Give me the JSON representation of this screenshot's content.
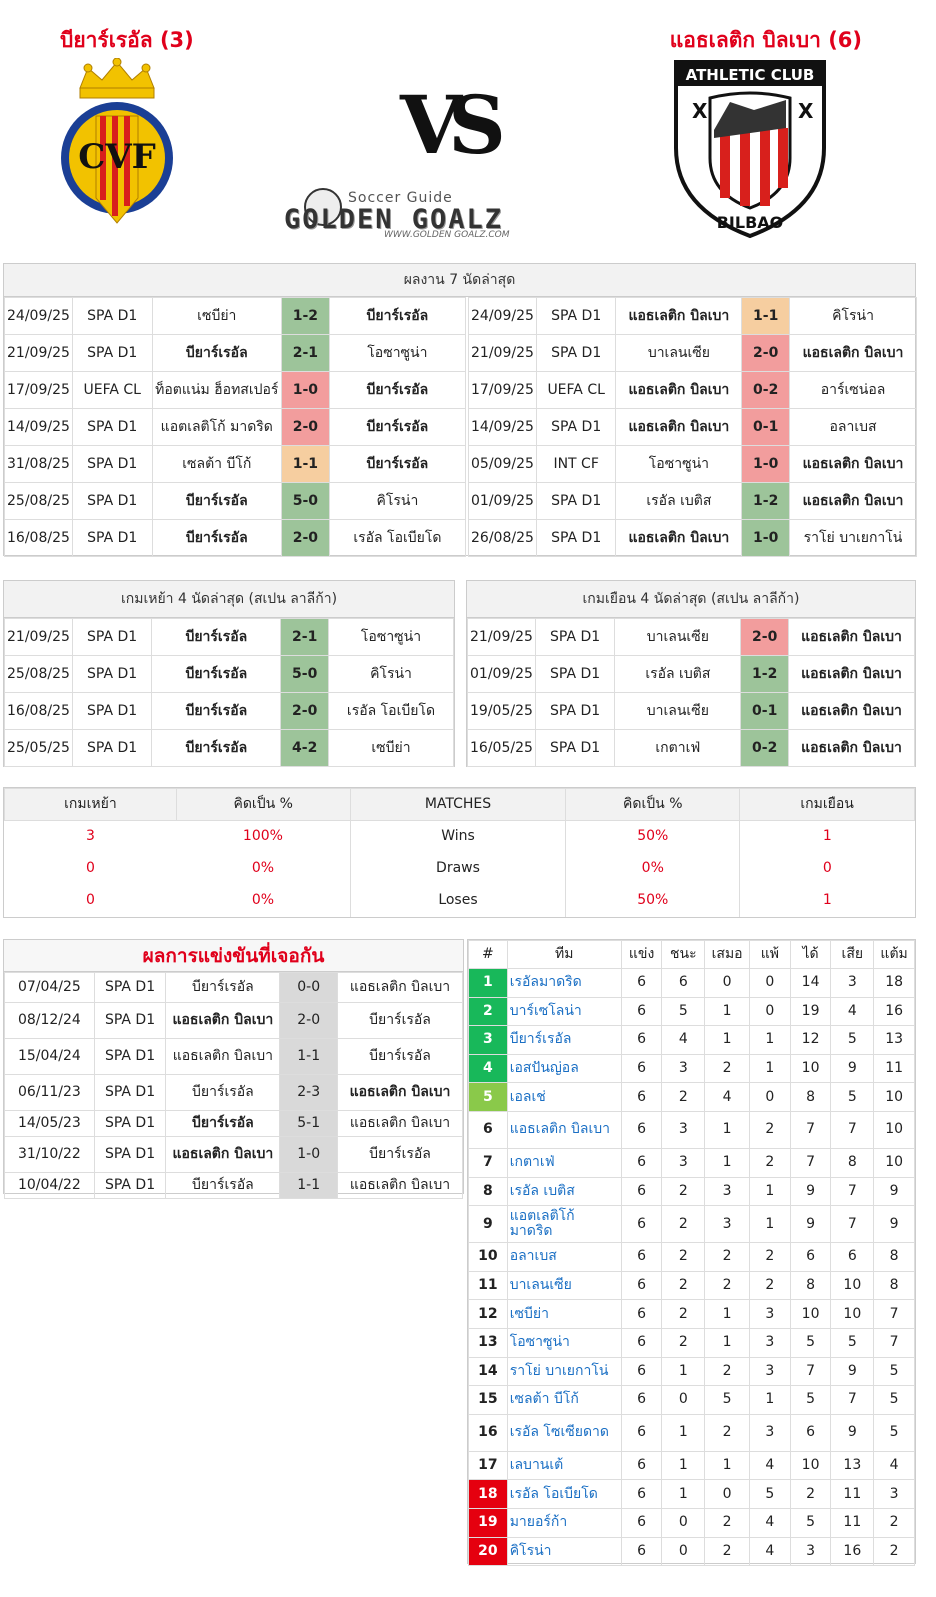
{
  "header": {
    "home_team": "บียาร์เรอัล (3)",
    "away_team": "แอธเลติก บิลเบา (6)",
    "vs": "VS",
    "brand_small": "Soccer Guide",
    "brand_big": "GOLDEN GOALZ",
    "brand_url": "WWW.GOLDEN GOALZ.COM",
    "home_crest_text": "CVF",
    "away_crest_top": "ATHLETIC CLUB",
    "away_crest_bottom": "BILBAO"
  },
  "last7": {
    "title": "ผลงาน 7 นัดล่าสุด",
    "home": [
      {
        "date": "24/09/25",
        "comp": "SPA D1",
        "home": "เซบีย่า",
        "score": "1-2",
        "away": "บียาร์เรอัล",
        "res": "win",
        "bold": "away"
      },
      {
        "date": "21/09/25",
        "comp": "SPA D1",
        "home": "บียาร์เรอัล",
        "score": "2-1",
        "away": "โอซาซูน่า",
        "res": "win",
        "bold": "home"
      },
      {
        "date": "17/09/25",
        "comp": "UEFA CL",
        "home": "ท็อตแน่ม ฮ็อทสเปอร์",
        "score": "1-0",
        "away": "บียาร์เรอัล",
        "res": "lose",
        "bold": "away"
      },
      {
        "date": "14/09/25",
        "comp": "SPA D1",
        "home": "แอตเลติโก้ มาดริด",
        "score": "2-0",
        "away": "บียาร์เรอัล",
        "res": "lose",
        "bold": "away"
      },
      {
        "date": "31/08/25",
        "comp": "SPA D1",
        "home": "เซลต้า บีโก้",
        "score": "1-1",
        "away": "บียาร์เรอัล",
        "res": "draw",
        "bold": "away"
      },
      {
        "date": "25/08/25",
        "comp": "SPA D1",
        "home": "บียาร์เรอัล",
        "score": "5-0",
        "away": "คิโรน่า",
        "res": "win",
        "bold": "home"
      },
      {
        "date": "16/08/25",
        "comp": "SPA D1",
        "home": "บียาร์เรอัล",
        "score": "2-0",
        "away": "เรอัล โอเบียโด",
        "res": "win",
        "bold": "home"
      }
    ],
    "away": [
      {
        "date": "24/09/25",
        "comp": "SPA D1",
        "home": "แอธเลติก บิลเบา",
        "score": "1-1",
        "away": "คิโรน่า",
        "res": "draw",
        "bold": "home"
      },
      {
        "date": "21/09/25",
        "comp": "SPA D1",
        "home": "บาเลนเซีย",
        "score": "2-0",
        "away": "แอธเลติก บิลเบา",
        "res": "lose",
        "bold": "away"
      },
      {
        "date": "17/09/25",
        "comp": "UEFA CL",
        "home": "แอธเลติก บิลเบา",
        "score": "0-2",
        "away": "อาร์เซน่อล",
        "res": "lose",
        "bold": "home"
      },
      {
        "date": "14/09/25",
        "comp": "SPA D1",
        "home": "แอธเลติก บิลเบา",
        "score": "0-1",
        "away": "อลาเบส",
        "res": "lose",
        "bold": "home"
      },
      {
        "date": "05/09/25",
        "comp": "INT CF",
        "home": "โอซาซูน่า",
        "score": "1-0",
        "away": "แอธเลติก บิลเบา",
        "res": "lose",
        "bold": "away"
      },
      {
        "date": "01/09/25",
        "comp": "SPA D1",
        "home": "เรอัล เบติส",
        "score": "1-2",
        "away": "แอธเลติก บิลเบา",
        "res": "win",
        "bold": "away"
      },
      {
        "date": "26/08/25",
        "comp": "SPA D1",
        "home": "แอธเลติก บิลเบา",
        "score": "1-0",
        "away": "ราโย่ บาเยกาโน่",
        "res": "win",
        "bold": "home"
      }
    ]
  },
  "last4": {
    "home_title": "เกมเหย้า 4 นัดล่าสุด (สเปน ลาลีก้า)",
    "away_title": "เกมเยือน 4 นัดล่าสุด (สเปน ลาลีก้า)",
    "home": [
      {
        "date": "21/09/25",
        "comp": "SPA D1",
        "home": "บียาร์เรอัล",
        "score": "2-1",
        "away": "โอซาซูน่า",
        "res": "win",
        "bold": "home"
      },
      {
        "date": "25/08/25",
        "comp": "SPA D1",
        "home": "บียาร์เรอัล",
        "score": "5-0",
        "away": "คิโรน่า",
        "res": "win",
        "bold": "home"
      },
      {
        "date": "16/08/25",
        "comp": "SPA D1",
        "home": "บียาร์เรอัล",
        "score": "2-0",
        "away": "เรอัล โอเบียโด",
        "res": "win",
        "bold": "home"
      },
      {
        "date": "25/05/25",
        "comp": "SPA D1",
        "home": "บียาร์เรอัล",
        "score": "4-2",
        "away": "เซบีย่า",
        "res": "win",
        "bold": "home"
      }
    ],
    "away": [
      {
        "date": "21/09/25",
        "comp": "SPA D1",
        "home": "บาเลนเซีย",
        "score": "2-0",
        "away": "แอธเลติก บิลเบา",
        "res": "lose",
        "bold": "away"
      },
      {
        "date": "01/09/25",
        "comp": "SPA D1",
        "home": "เรอัล เบติส",
        "score": "1-2",
        "away": "แอธเลติก บิลเบา",
        "res": "win",
        "bold": "away"
      },
      {
        "date": "19/05/25",
        "comp": "SPA D1",
        "home": "บาเลนเซีย",
        "score": "0-1",
        "away": "แอธเลติก บิลเบา",
        "res": "win",
        "bold": "away"
      },
      {
        "date": "16/05/25",
        "comp": "SPA D1",
        "home": "เกตาเฟ่",
        "score": "0-2",
        "away": "แอธเลติก บิลเบา",
        "res": "win",
        "bold": "away"
      }
    ]
  },
  "summary": {
    "headers": [
      "เกมเหย้า",
      "คิดเป็น %",
      "MATCHES",
      "คิดเป็น %",
      "เกมเยือน"
    ],
    "rows": [
      {
        "home": "3",
        "home_pct": "100%",
        "label": "Wins",
        "away_pct": "50%",
        "away": "1"
      },
      {
        "home": "0",
        "home_pct": "0%",
        "label": "Draws",
        "away_pct": "0%",
        "away": "0"
      },
      {
        "home": "0",
        "home_pct": "0%",
        "label": "Loses",
        "away_pct": "50%",
        "away": "1"
      }
    ]
  },
  "h2h": {
    "title": "ผลการแข่งขันที่เจอกัน",
    "rows": [
      {
        "date": "07/04/25",
        "comp": "SPA D1",
        "home": "บียาร์เรอัล",
        "score": "0-0",
        "away": "แอธเลติก บิลเบา",
        "bold": ""
      },
      {
        "date": "08/12/24",
        "comp": "SPA D1",
        "home": "แอธเลติก บิลเบา",
        "score": "2-0",
        "away": "บียาร์เรอัล",
        "bold": "home"
      },
      {
        "date": "15/04/24",
        "comp": "SPA D1",
        "home": "แอธเลติก บิลเบา",
        "score": "1-1",
        "away": "บียาร์เรอัล",
        "bold": ""
      },
      {
        "date": "06/11/23",
        "comp": "SPA D1",
        "home": "บียาร์เรอัล",
        "score": "2-3",
        "away": "แอธเลติก บิลเบา",
        "bold": "away"
      },
      {
        "date": "14/05/23",
        "comp": "SPA D1",
        "home": "บียาร์เรอัล",
        "score": "5-1",
        "away": "แอธเลติก บิลเบา",
        "bold": "home"
      },
      {
        "date": "31/10/22",
        "comp": "SPA D1",
        "home": "แอธเลติก บิลเบา",
        "score": "1-0",
        "away": "บียาร์เรอัล",
        "bold": "home"
      },
      {
        "date": "10/04/22",
        "comp": "SPA D1",
        "home": "บียาร์เรอัล",
        "score": "1-1",
        "away": "แอธเลติก บิลเบา",
        "bold": ""
      }
    ]
  },
  "table": {
    "headers": [
      "#",
      "ทีม",
      "แข่ง",
      "ชนะ",
      "เสมอ",
      "แพ้",
      "ได้",
      "เสีย",
      "แต้ม"
    ],
    "rows": [
      {
        "pos": "1",
        "team": "เรอัลมาดริด",
        "p": "6",
        "w": "6",
        "d": "0",
        "l": "0",
        "gf": "14",
        "ga": "3",
        "pts": "18",
        "zone": "green"
      },
      {
        "pos": "2",
        "team": "บาร์เซโลน่า",
        "p": "6",
        "w": "5",
        "d": "1",
        "l": "0",
        "gf": "19",
        "ga": "4",
        "pts": "16",
        "zone": "green"
      },
      {
        "pos": "3",
        "team": "บียาร์เรอัล",
        "p": "6",
        "w": "4",
        "d": "1",
        "l": "1",
        "gf": "12",
        "ga": "5",
        "pts": "13",
        "zone": "green"
      },
      {
        "pos": "4",
        "team": "เอสปันญ่อล",
        "p": "6",
        "w": "3",
        "d": "2",
        "l": "1",
        "gf": "10",
        "ga": "9",
        "pts": "11",
        "zone": "green"
      },
      {
        "pos": "5",
        "team": "เอลเช่",
        "p": "6",
        "w": "2",
        "d": "4",
        "l": "0",
        "gf": "8",
        "ga": "5",
        "pts": "10",
        "zone": "light"
      },
      {
        "pos": "6",
        "team": "แอธเลติก บิลเบา",
        "p": "6",
        "w": "3",
        "d": "1",
        "l": "2",
        "gf": "7",
        "ga": "7",
        "pts": "10",
        "zone": "none"
      },
      {
        "pos": "7",
        "team": "เกตาเฟ่",
        "p": "6",
        "w": "3",
        "d": "1",
        "l": "2",
        "gf": "7",
        "ga": "8",
        "pts": "10",
        "zone": "none"
      },
      {
        "pos": "8",
        "team": "เรอัล เบติส",
        "p": "6",
        "w": "2",
        "d": "3",
        "l": "1",
        "gf": "9",
        "ga": "7",
        "pts": "9",
        "zone": "none"
      },
      {
        "pos": "9",
        "team": "แอตเลติโก้ มาดริด",
        "p": "6",
        "w": "2",
        "d": "3",
        "l": "1",
        "gf": "9",
        "ga": "7",
        "pts": "9",
        "zone": "none"
      },
      {
        "pos": "10",
        "team": "อลาเบส",
        "p": "6",
        "w": "2",
        "d": "2",
        "l": "2",
        "gf": "6",
        "ga": "6",
        "pts": "8",
        "zone": "none"
      },
      {
        "pos": "11",
        "team": "บาเลนเซีย",
        "p": "6",
        "w": "2",
        "d": "2",
        "l": "2",
        "gf": "8",
        "ga": "10",
        "pts": "8",
        "zone": "none"
      },
      {
        "pos": "12",
        "team": "เซบีย่า",
        "p": "6",
        "w": "2",
        "d": "1",
        "l": "3",
        "gf": "10",
        "ga": "10",
        "pts": "7",
        "zone": "none"
      },
      {
        "pos": "13",
        "team": "โอซาซูน่า",
        "p": "6",
        "w": "2",
        "d": "1",
        "l": "3",
        "gf": "5",
        "ga": "5",
        "pts": "7",
        "zone": "none"
      },
      {
        "pos": "14",
        "team": "ราโย่ บาเยกาโน่",
        "p": "6",
        "w": "1",
        "d": "2",
        "l": "3",
        "gf": "7",
        "ga": "9",
        "pts": "5",
        "zone": "none"
      },
      {
        "pos": "15",
        "team": "เซลต้า บีโก้",
        "p": "6",
        "w": "0",
        "d": "5",
        "l": "1",
        "gf": "5",
        "ga": "7",
        "pts": "5",
        "zone": "none"
      },
      {
        "pos": "16",
        "team": "เรอัล โซเซียดาด",
        "p": "6",
        "w": "1",
        "d": "2",
        "l": "3",
        "gf": "6",
        "ga": "9",
        "pts": "5",
        "zone": "none"
      },
      {
        "pos": "17",
        "team": "เลบานเต้",
        "p": "6",
        "w": "1",
        "d": "1",
        "l": "4",
        "gf": "10",
        "ga": "13",
        "pts": "4",
        "zone": "none"
      },
      {
        "pos": "18",
        "team": "เรอัล โอเบียโด",
        "p": "6",
        "w": "1",
        "d": "0",
        "l": "5",
        "gf": "2",
        "ga": "11",
        "pts": "3",
        "zone": "red"
      },
      {
        "pos": "19",
        "team": "มายอร์ก้า",
        "p": "6",
        "w": "0",
        "d": "2",
        "l": "4",
        "gf": "5",
        "ga": "11",
        "pts": "2",
        "zone": "red"
      },
      {
        "pos": "20",
        "team": "คิโรน่า",
        "p": "6",
        "w": "0",
        "d": "2",
        "l": "4",
        "gf": "3",
        "ga": "16",
        "pts": "2",
        "zone": "red"
      }
    ]
  }
}
